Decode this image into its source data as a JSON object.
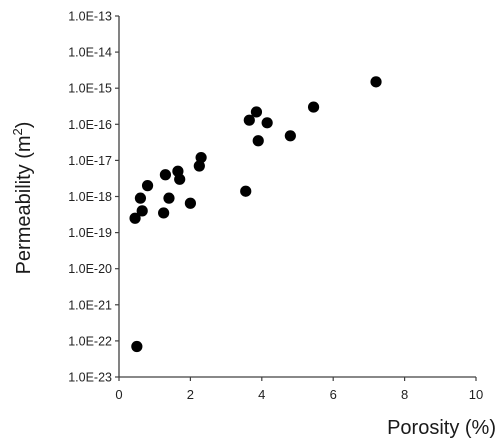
{
  "chart_data": {
    "type": "scatter",
    "xlabel": "Porosity (%)",
    "ylabel_main": "Permeability (m",
    "ylabel_sup": "2",
    "ylabel_end": ")",
    "xlim": [
      0,
      10
    ],
    "ylim_exponent": [
      -23,
      -13
    ],
    "y_scale": "log",
    "grid": false,
    "legend": "none",
    "x_ticks": [
      "0",
      "2",
      "4",
      "6",
      "8",
      "10"
    ],
    "y_ticks": [
      "1.0E-23",
      "1.0E-22",
      "1.0E-21",
      "1.0E-20",
      "1.0E-19",
      "1.0E-18",
      "1.0E-17",
      "1.0E-16",
      "1.0E-15",
      "1.0E-14",
      "1.0E-13"
    ],
    "marker_color": "#000000",
    "points": [
      {
        "x": 0.45,
        "y": 2.5e-19
      },
      {
        "x": 0.5,
        "y": 7e-23
      },
      {
        "x": 0.6,
        "y": 9e-19
      },
      {
        "x": 0.65,
        "y": 4e-19
      },
      {
        "x": 0.8,
        "y": 2e-18
      },
      {
        "x": 1.25,
        "y": 3.5e-19
      },
      {
        "x": 1.3,
        "y": 4e-18
      },
      {
        "x": 1.4,
        "y": 9e-19
      },
      {
        "x": 1.65,
        "y": 5e-18
      },
      {
        "x": 1.7,
        "y": 3e-18
      },
      {
        "x": 2.0,
        "y": 6.5e-19
      },
      {
        "x": 2.25,
        "y": 7e-18
      },
      {
        "x": 2.3,
        "y": 1.2e-17
      },
      {
        "x": 3.55,
        "y": 1.4e-18
      },
      {
        "x": 3.65,
        "y": 1.3e-16
      },
      {
        "x": 3.85,
        "y": 2.2e-16
      },
      {
        "x": 3.9,
        "y": 3.5e-17
      },
      {
        "x": 4.15,
        "y": 1.1e-16
      },
      {
        "x": 4.8,
        "y": 4.8e-17
      },
      {
        "x": 5.45,
        "y": 3e-16
      },
      {
        "x": 7.2,
        "y": 1.5e-15
      }
    ]
  }
}
